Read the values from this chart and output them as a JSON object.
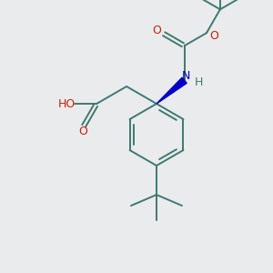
{
  "bg_color": "#eaebed",
  "bond_color": "#3d7a6e",
  "o_color": "#cc2200",
  "n_color": "#0000cc",
  "figsize": [
    3.0,
    3.0
  ],
  "dpi": 100,
  "xlim": [
    0,
    300
  ],
  "ylim": [
    0,
    300
  ]
}
